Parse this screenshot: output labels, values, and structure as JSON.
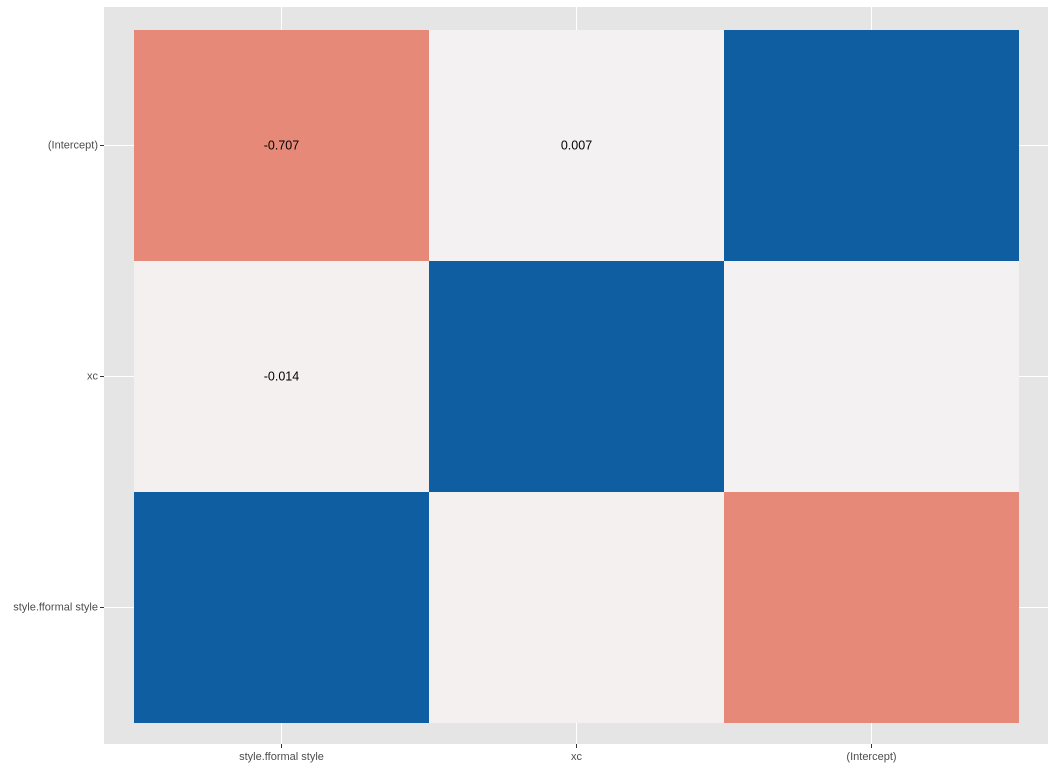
{
  "chart_data": {
    "type": "heatmap",
    "title": "",
    "xlabel": "",
    "ylabel": "",
    "x_categories": [
      "style.fformal style",
      "xc",
      "(Intercept)"
    ],
    "y_categories": [
      "(Intercept)",
      "xc",
      "style.fformal style"
    ],
    "values": [
      [
        -0.707,
        0.007,
        1.0
      ],
      [
        -0.014,
        1.0,
        0.007
      ],
      [
        1.0,
        -0.014,
        -0.707
      ]
    ],
    "cell_labels": [
      [
        "-0.707",
        "0.007",
        ""
      ],
      [
        "-0.014",
        "",
        ""
      ],
      [
        "",
        "",
        ""
      ]
    ],
    "color_scale": {
      "low": "#e05e47",
      "mid": "#f5f2f2",
      "high": "#0e5ea1",
      "limits": [
        -1,
        1
      ]
    },
    "grid": true,
    "legend": "none",
    "panel_background": "#e5e5e5",
    "grid_color": "#ffffff"
  }
}
